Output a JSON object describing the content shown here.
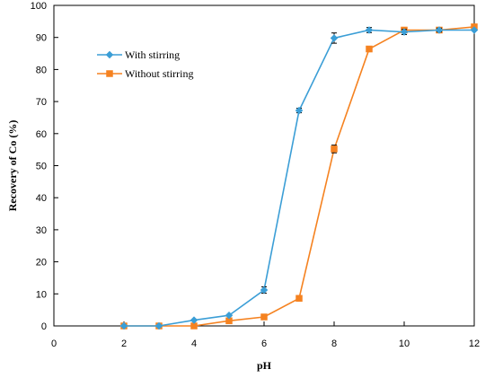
{
  "chart_data": {
    "type": "line",
    "xlabel": "pH",
    "ylabel": "Recovery of Co  (%)",
    "xlim": [
      0,
      12
    ],
    "ylim": [
      0,
      100
    ],
    "xticks": [
      0,
      2,
      4,
      6,
      8,
      10,
      12
    ],
    "yticks": [
      0,
      10,
      20,
      30,
      40,
      50,
      60,
      70,
      80,
      90,
      100
    ],
    "grid": false,
    "legend_position": "top-left",
    "series": [
      {
        "name": "With stirring",
        "color": "#3b9ed6",
        "marker": "diamond",
        "x": [
          2,
          3,
          4,
          5,
          6,
          7,
          8,
          9,
          10,
          11,
          12
        ],
        "y": [
          0,
          0,
          1.8,
          3.3,
          11.2,
          67.2,
          89.8,
          92.3,
          91.7,
          92.3,
          92.3
        ],
        "error": [
          0,
          0,
          0,
          0,
          1.0,
          0.7,
          1.6,
          0.8,
          0.8,
          0.6,
          0
        ]
      },
      {
        "name": "Without stirring",
        "color": "#f58220",
        "marker": "square",
        "x": [
          2,
          3,
          4,
          5,
          6,
          7,
          8,
          9,
          10,
          11,
          12
        ],
        "y": [
          0,
          0,
          0,
          1.6,
          2.8,
          8.6,
          55.2,
          86.4,
          92.3,
          92.3,
          93.3
        ],
        "error": [
          0,
          0,
          0,
          0,
          0,
          0,
          1.2,
          0,
          0,
          0,
          0
        ]
      }
    ]
  }
}
